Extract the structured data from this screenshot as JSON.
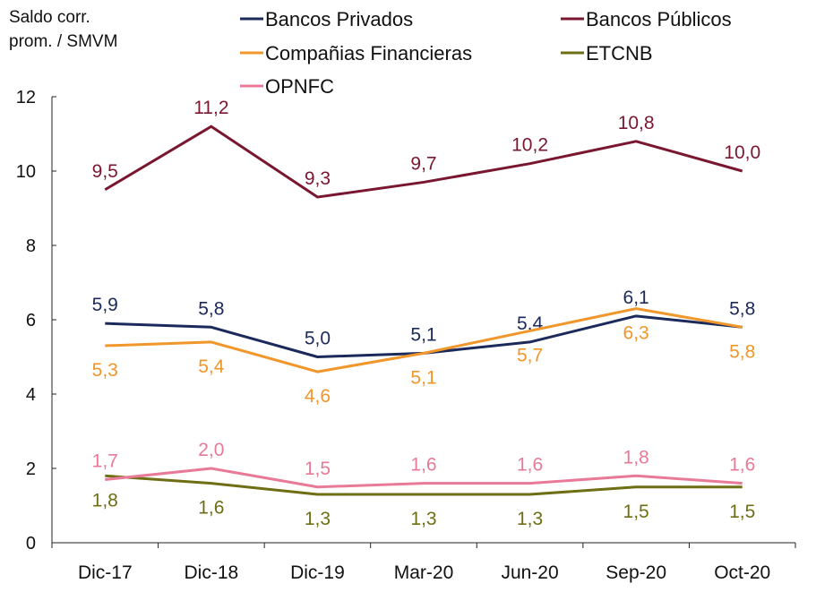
{
  "chart_data": {
    "type": "line",
    "ylabel": "Saldo corr. prom. / SMVM",
    "categories": [
      "Dic-17",
      "Dic-18",
      "Dic-19",
      "Mar-20",
      "Jun-20",
      "Sep-20",
      "Oct-20"
    ],
    "ylim": [
      0,
      12
    ],
    "yticks": [
      0,
      2,
      4,
      6,
      8,
      10,
      12
    ],
    "grid": false,
    "legend_placement": "top",
    "series": [
      {
        "name": "Bancos Privados",
        "color": "#1b2a5a",
        "values": [
          5.9,
          5.8,
          5.0,
          5.1,
          5.4,
          6.1,
          5.8
        ],
        "labels": [
          "5,9",
          "5,8",
          "5,0",
          "5,1",
          "5,4",
          "6,1",
          "5,8"
        ],
        "label_pos": "above"
      },
      {
        "name": "Bancos Públicos",
        "color": "#7a1730",
        "values": [
          9.5,
          11.2,
          9.3,
          9.7,
          10.2,
          10.8,
          10.0
        ],
        "labels": [
          "9,5",
          "11,2",
          "9,3",
          "9,7",
          "10,2",
          "10,8",
          "10,0"
        ],
        "label_pos": "above"
      },
      {
        "name": "Compañias Financieras",
        "color": "#f0962a",
        "values": [
          5.3,
          5.4,
          4.6,
          5.1,
          5.7,
          6.3,
          5.8
        ],
        "labels": [
          "5,3",
          "5,4",
          "4,6",
          "5,1",
          "5,7",
          "6,3",
          "5,8"
        ],
        "label_pos": "below"
      },
      {
        "name": "ETCNB",
        "color": "#6e6e14",
        "values": [
          1.8,
          1.6,
          1.3,
          1.3,
          1.3,
          1.5,
          1.5
        ],
        "labels": [
          "1,8",
          "1,6",
          "1,3",
          "1,3",
          "1,3",
          "1,5",
          "1,5"
        ],
        "label_pos": "below"
      },
      {
        "name": "OPNFC",
        "color": "#e87a98",
        "values": [
          1.7,
          2.0,
          1.5,
          1.6,
          1.6,
          1.8,
          1.6
        ],
        "labels": [
          "1,7",
          "2,0",
          "1,5",
          "1,6",
          "1,6",
          "1,8",
          "1,6"
        ],
        "label_pos": "above"
      }
    ]
  }
}
